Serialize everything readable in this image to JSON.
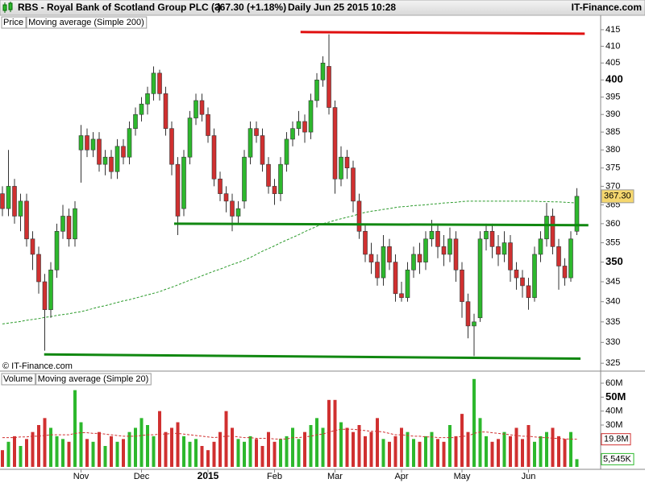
{
  "header": {
    "title": "RBS - Royal Bank of Scotland Group PLC (-)",
    "quote": "367.30 (+1.18%)",
    "period": "Daily",
    "datetime": "Jun 25 2015 10:28",
    "source": "IT-Finance.com"
  },
  "watermark": "© IT-Finance.com",
  "chart_data": [
    {
      "type": "candlestick",
      "name": "Price",
      "log": true,
      "ylim": [
        323.7,
        420.4
      ],
      "yticks": [
        325,
        330,
        335,
        340,
        345,
        350,
        355,
        360,
        365,
        370,
        375,
        380,
        385,
        390,
        395,
        400,
        405,
        410,
        415
      ],
      "up_color": "#2db82d",
      "down_color": "#d03030",
      "open": [
        368,
        364,
        370,
        362,
        366,
        356,
        352,
        345,
        338,
        348,
        358,
        362,
        356,
        380,
        384,
        380,
        383,
        376,
        378,
        374,
        381,
        378,
        386,
        390,
        393,
        396,
        402,
        396,
        386,
        376,
        364,
        378,
        389,
        394,
        390,
        384,
        372,
        368,
        366,
        362,
        366,
        378,
        386,
        384,
        376,
        370,
        368,
        376,
        383,
        386,
        388,
        385,
        394,
        400,
        404,
        392,
        372,
        378,
        375,
        366,
        358,
        352,
        350,
        346,
        354,
        350,
        342,
        341,
        348,
        352,
        350,
        356,
        358,
        354,
        352,
        356,
        348,
        340,
        334,
        336,
        356,
        358,
        354,
        352,
        355,
        348,
        346,
        344,
        341,
        352,
        356,
        362,
        354,
        349,
        346,
        358
      ],
      "high": [
        370,
        380,
        372,
        368,
        368,
        358,
        354,
        347,
        350,
        360,
        365,
        364,
        366,
        387,
        386,
        385,
        385,
        380,
        380,
        383,
        383,
        388,
        392,
        395,
        398,
        404,
        403,
        398,
        388,
        378,
        380,
        391,
        396,
        396,
        392,
        386,
        374,
        370,
        368,
        366,
        380,
        388,
        388,
        386,
        378,
        372,
        378,
        385,
        388,
        391,
        390,
        396,
        402,
        407,
        413.6,
        394,
        381,
        380,
        377,
        368,
        360,
        355,
        352,
        357,
        356,
        352,
        345,
        350,
        354,
        355,
        358,
        361,
        360,
        357,
        359,
        358,
        350,
        342,
        337,
        358,
        360,
        360,
        357,
        358,
        357,
        350,
        348,
        346,
        354,
        358,
        365.5,
        364,
        356,
        351,
        358,
        369.5
      ],
      "low": [
        362,
        362,
        360,
        358,
        354,
        348,
        342,
        328,
        336,
        346,
        356,
        354,
        354,
        371,
        378,
        378,
        374,
        373,
        372,
        372,
        376,
        376,
        384,
        388,
        390,
        394,
        394,
        384,
        373,
        357,
        362,
        376,
        387,
        388,
        382,
        370,
        366,
        363,
        358,
        360,
        364,
        376,
        382,
        374,
        368,
        365,
        366,
        374,
        381,
        384,
        382,
        383,
        392,
        398,
        390,
        368,
        370,
        372,
        363,
        356,
        350,
        347,
        344,
        344,
        348,
        340,
        340,
        340,
        346,
        347,
        348,
        354,
        351,
        349,
        350,
        345,
        336,
        331,
        326.7,
        335,
        353,
        351,
        349,
        350,
        345,
        343,
        341,
        338,
        340,
        350,
        354,
        352,
        343,
        344,
        345,
        357
      ],
      "close": [
        364,
        370,
        362,
        366,
        356,
        352,
        345,
        338,
        348,
        358,
        362,
        356,
        364,
        384,
        380,
        383,
        376,
        378,
        374,
        381,
        378,
        386,
        390,
        393,
        396,
        402,
        396,
        386,
        376,
        362,
        378,
        389,
        394,
        390,
        384,
        372,
        368,
        366,
        362,
        364,
        378,
        386,
        384,
        376,
        370,
        368,
        376,
        383,
        386,
        388,
        385,
        394,
        400,
        405,
        392,
        372,
        378,
        375,
        366,
        358,
        352,
        350,
        346,
        354,
        350,
        342,
        341,
        348,
        352,
        350,
        356,
        358,
        354,
        352,
        356,
        348,
        340,
        334,
        335,
        356,
        358,
        354,
        352,
        355,
        348,
        346,
        344,
        341,
        352,
        356,
        362,
        354,
        349,
        346,
        356,
        367.3
      ],
      "last_price": {
        "value": 367.3,
        "label": "367.30"
      },
      "series": [
        {
          "name": "Moving average (Simple 200)",
          "color": "#2a9a2a",
          "values": [
            334.5,
            334.7,
            334.9,
            335.1,
            335.4,
            335.6,
            335.8,
            336.1,
            336.3,
            336.6,
            336.8,
            337,
            337.3,
            337.5,
            337.9,
            338.3,
            338.7,
            339,
            339.4,
            339.8,
            340.2,
            340.5,
            340.9,
            341.3,
            341.7,
            342.1,
            342.5,
            343.1,
            343.6,
            344.2,
            344.8,
            345.4,
            345.9,
            346.5,
            347.1,
            347.7,
            348.2,
            348.8,
            349.4,
            349.9,
            350.5,
            351.2,
            352,
            352.8,
            353.5,
            354.2,
            355,
            355.7,
            356.4,
            357.1,
            357.9,
            358.6,
            359.3,
            360,
            360.4,
            360.9,
            361.3,
            361.7,
            362.1,
            362.6,
            363,
            363.3,
            363.5,
            363.8,
            364,
            364.3,
            364.5,
            364.6,
            364.8,
            364.9,
            365,
            365.2,
            365.3,
            365.5,
            365.6,
            365.7,
            365.9,
            366,
            366,
            366,
            366,
            366,
            366,
            366,
            366,
            366,
            366,
            366,
            366,
            365.9,
            365.9,
            365.8,
            365.8,
            365.7,
            365.6,
            365.5
          ]
        }
      ],
      "trendlines": [
        {
          "color": "#e01010",
          "x": [
            49.3,
            96.3
          ],
          "values": [
            414.3,
            413.8
          ]
        },
        {
          "color": "#118811",
          "x": [
            28.4,
            96.9
          ],
          "values": [
            360,
            359.6
          ]
        },
        {
          "color": "#118811",
          "x": [
            6.9,
            95.6
          ],
          "values": [
            327.1,
            326.1
          ]
        }
      ]
    },
    {
      "type": "bar",
      "name": "Volume",
      "ylim": [
        0,
        67.5
      ],
      "yticks": [
        {
          "value": 30,
          "label": "30M"
        },
        {
          "value": 40,
          "label": "40M"
        },
        {
          "value": 50,
          "label": "50M"
        },
        {
          "value": 60,
          "label": "60M"
        }
      ],
      "categories": [
        null,
        null,
        null,
        null,
        null,
        null,
        null,
        null,
        null,
        null,
        null,
        null,
        null,
        "Nov",
        null,
        null,
        null,
        null,
        null,
        null,
        null,
        null,
        null,
        "Dec",
        null,
        null,
        null,
        null,
        null,
        null,
        null,
        null,
        null,
        null,
        "2015",
        null,
        null,
        null,
        null,
        null,
        null,
        null,
        null,
        null,
        null,
        "Feb",
        null,
        null,
        null,
        null,
        null,
        null,
        null,
        null,
        null,
        "Mar",
        null,
        null,
        null,
        null,
        null,
        null,
        null,
        null,
        null,
        null,
        "Apr",
        null,
        null,
        null,
        null,
        null,
        null,
        null,
        null,
        null,
        "May",
        null,
        null,
        null,
        null,
        null,
        null,
        null,
        null,
        null,
        null,
        "Jun",
        null,
        null,
        null,
        null,
        null,
        null,
        null,
        null
      ],
      "values": [
        12,
        18,
        22,
        15,
        20,
        25,
        30,
        35,
        28,
        22,
        20,
        18,
        55,
        32,
        20,
        18,
        25,
        15,
        22,
        18,
        20,
        25,
        28,
        35,
        30,
        22,
        40,
        25,
        28,
        32,
        22,
        18,
        20,
        15,
        12,
        18,
        25,
        40,
        28,
        20,
        18,
        22,
        20,
        15,
        25,
        18,
        20,
        22,
        28,
        20,
        25,
        30,
        35,
        28,
        48,
        48,
        32,
        28,
        25,
        30,
        22,
        25,
        35,
        20,
        18,
        22,
        28,
        25,
        20,
        18,
        22,
        25,
        20,
        18,
        30,
        22,
        38,
        25,
        63,
        35,
        22,
        18,
        20,
        25,
        22,
        28,
        20,
        30,
        18,
        22,
        25,
        28,
        22,
        20,
        25,
        5.545
      ],
      "last_volume": {
        "value": 5.545,
        "label": "5,545K"
      },
      "series": [
        {
          "name": "Moving average (Simple 20)",
          "color": "#d03030",
          "values": [
            21,
            21,
            21,
            21.5,
            21.5,
            22,
            22,
            22.5,
            23,
            23,
            23,
            23,
            24,
            24.5,
            24.5,
            24,
            24,
            23.5,
            23,
            22.5,
            22,
            22,
            22,
            22.5,
            23,
            23,
            23.5,
            23.5,
            24,
            24,
            23.5,
            23,
            22.5,
            22,
            21.5,
            21,
            21.5,
            22,
            22,
            21.5,
            21,
            21,
            20.5,
            20.5,
            20.5,
            20,
            20,
            20,
            21,
            21,
            21.5,
            22,
            23,
            23.5,
            25,
            26,
            27,
            27,
            27,
            26.5,
            26,
            25.5,
            25.5,
            25,
            24,
            23,
            23,
            22.5,
            22,
            22,
            21.5,
            21.5,
            21,
            21,
            21,
            21,
            22,
            22,
            24,
            25,
            25,
            24.5,
            24,
            23.5,
            23,
            22.5,
            22,
            22,
            21.5,
            21,
            21,
            20.5,
            20.5,
            20,
            20,
            19.8
          ]
        }
      ],
      "ma_last": {
        "value": 19.8,
        "label": "19.8M"
      }
    }
  ]
}
